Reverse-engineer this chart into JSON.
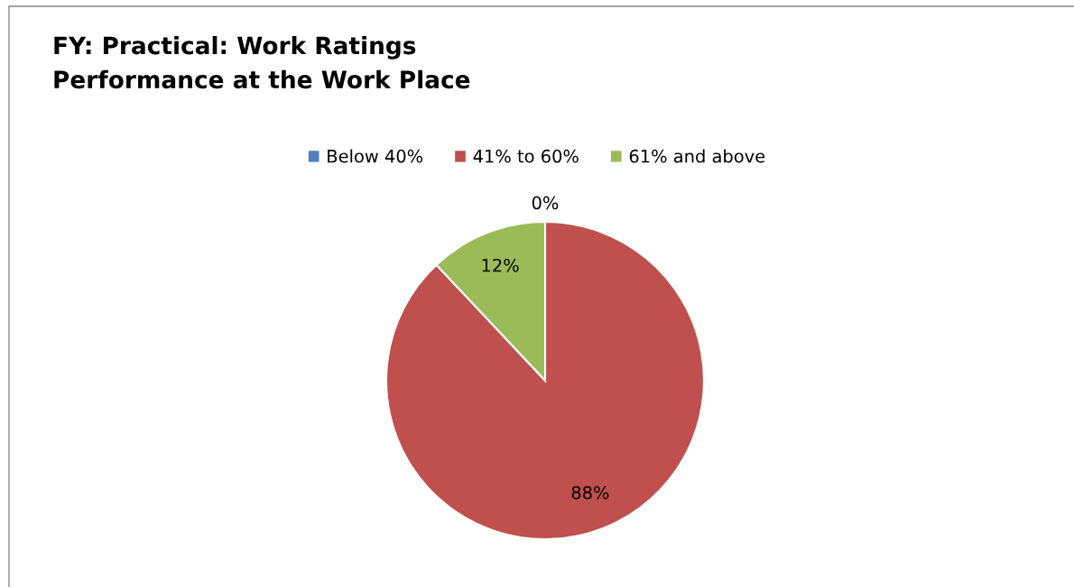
{
  "chart_data": {
    "type": "pie",
    "title": "FY: Practical: Work Ratings\nPerformance at the Work Place",
    "categories": [
      "Below 40%",
      "41% to 60%",
      "61% and above"
    ],
    "values": [
      0,
      88,
      12
    ],
    "colors": [
      "#4f81bd",
      "#c0504d",
      "#9bbb59"
    ],
    "value_labels": [
      "0%",
      "88%",
      "12%"
    ],
    "legend": "top"
  }
}
